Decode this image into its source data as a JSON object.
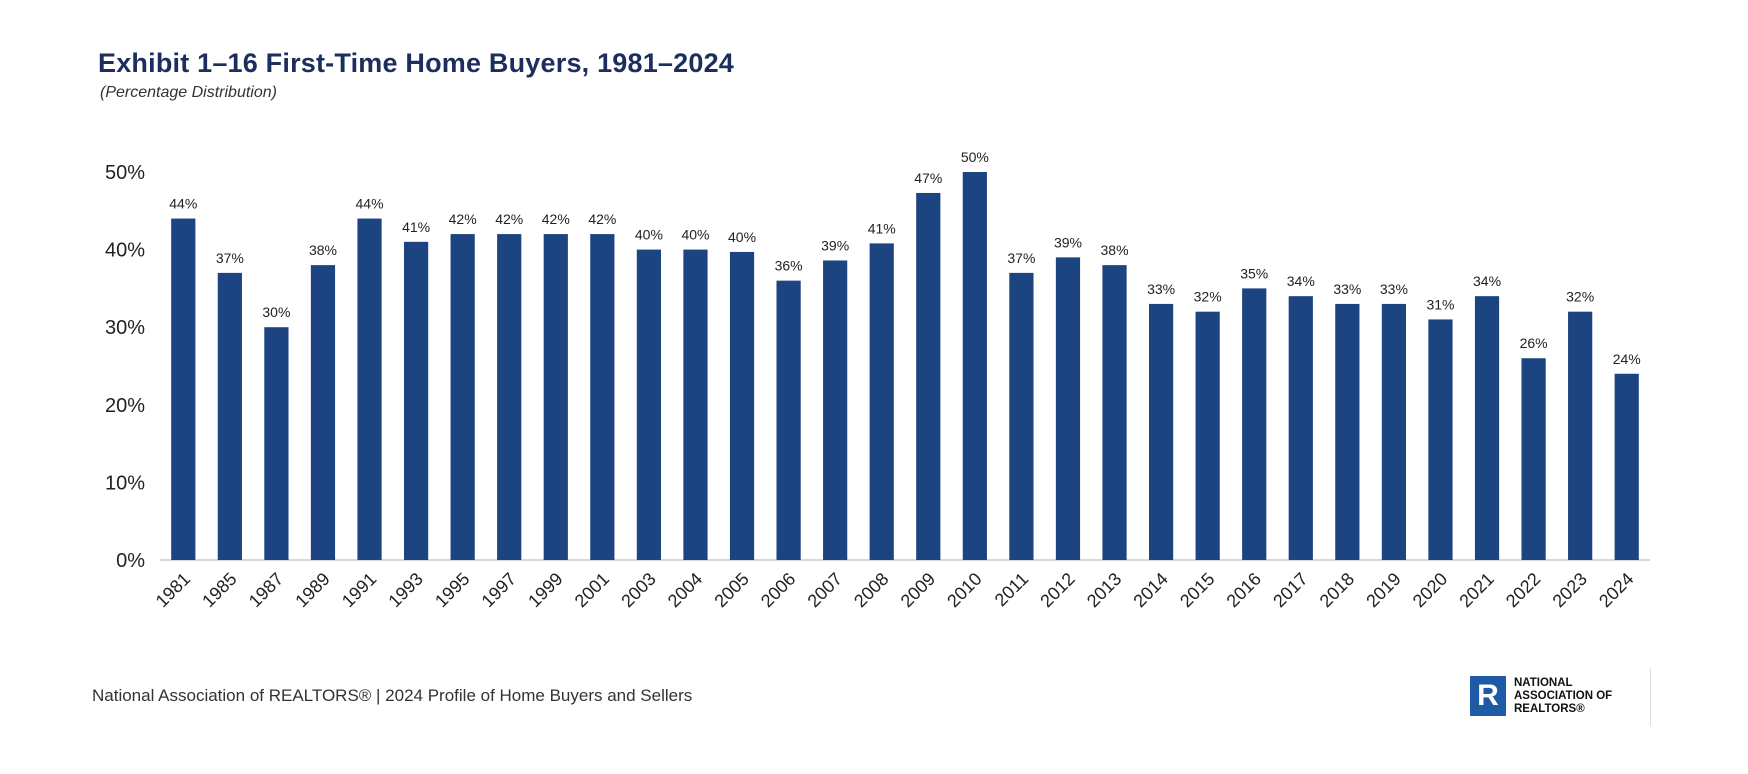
{
  "title": "Exhibit 1–16 First-Time Home Buyers, 1981–2024",
  "subtitle": "(Percentage  Distribution)",
  "footer": {
    "source": "National Association of REALTORS® | 2024 Profile of Home Buyers and Sellers",
    "logo_letter": "R",
    "logo_text": "NATIONAL ASSOCIATION OF REALTORS®"
  },
  "colors": {
    "bar": "#1c4480",
    "title": "#1c2e5e",
    "axis": "#cccccc",
    "text": "#222222"
  },
  "chart_data": {
    "type": "bar",
    "title": "Exhibit 1–16 First-Time Home Buyers, 1981–2024",
    "subtitle": "(Percentage  Distribution)",
    "xlabel": "",
    "ylabel": "",
    "ylim": [
      0,
      50
    ],
    "yticks": [
      0,
      10,
      20,
      30,
      40,
      50
    ],
    "ytick_labels": [
      "0%",
      "10%",
      "20%",
      "30%",
      "40%",
      "50%"
    ],
    "grid": false,
    "legend": "none",
    "categories": [
      "1981",
      "1985",
      "1987",
      "1989",
      "1991",
      "1993",
      "1995",
      "1997",
      "1999",
      "2001",
      "2003",
      "2004",
      "2005",
      "2006",
      "2007",
      "2008",
      "2009",
      "2010",
      "2011",
      "2012",
      "2013",
      "2014",
      "2015",
      "2016",
      "2017",
      "2018",
      "2019",
      "2020",
      "2021",
      "2022",
      "2023",
      "2024"
    ],
    "values": [
      44,
      37,
      30,
      38,
      44,
      41,
      42,
      42,
      42,
      42,
      40,
      40,
      39.7,
      36,
      38.6,
      40.8,
      47.3,
      50,
      37,
      39,
      38,
      33,
      32,
      35,
      34,
      33,
      33,
      31,
      34,
      26,
      32,
      24
    ],
    "data_labels": [
      "44%",
      "37%",
      "30%",
      "38%",
      "44%",
      "41%",
      "42%",
      "42%",
      "42%",
      "42%",
      "40%",
      "40%",
      "40%",
      "36%",
      "39%",
      "41%",
      "47%",
      "50%",
      "37%",
      "39%",
      "38%",
      "33%",
      "32%",
      "35%",
      "34%",
      "33%",
      "33%",
      "31%",
      "34%",
      "26%",
      "32%",
      "24%"
    ]
  }
}
